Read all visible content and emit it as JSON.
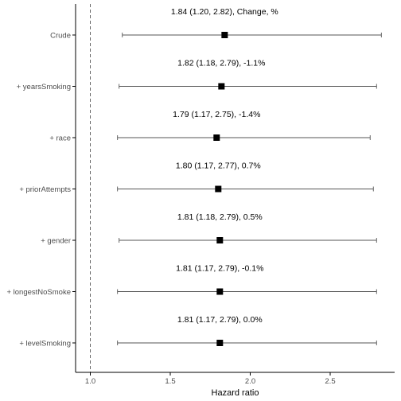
{
  "chart_data": {
    "type": "forest",
    "xlabel": "Hazard ratio",
    "xlim": [
      0.93,
      2.87
    ],
    "xticks": [
      1.0,
      1.5,
      2.0,
      2.5
    ],
    "xtick_labels": [
      "1.0",
      "1.5",
      "2.0",
      "2.5"
    ],
    "reference_line": 1.0,
    "rows": [
      {
        "label": "Crude",
        "estimate": 1.84,
        "lower": 1.2,
        "upper": 2.82,
        "annotation": "1.84 (1.20, 2.82),  Change, %"
      },
      {
        "label": "+ yearsSmoking",
        "estimate": 1.82,
        "lower": 1.18,
        "upper": 2.79,
        "annotation": "1.82 (1.18, 2.79),  -1.1%"
      },
      {
        "label": "+ race",
        "estimate": 1.79,
        "lower": 1.17,
        "upper": 2.75,
        "annotation": "1.79 (1.17, 2.75),  -1.4%"
      },
      {
        "label": "+ priorAttempts",
        "estimate": 1.8,
        "lower": 1.17,
        "upper": 2.77,
        "annotation": "1.80 (1.17, 2.77),  0.7%"
      },
      {
        "label": "+ gender",
        "estimate": 1.81,
        "lower": 1.18,
        "upper": 2.79,
        "annotation": "1.81 (1.18, 2.79),  0.5%"
      },
      {
        "label": "+ longestNoSmoke",
        "estimate": 1.81,
        "lower": 1.17,
        "upper": 2.79,
        "annotation": "1.81 (1.17, 2.79),  -0.1%"
      },
      {
        "label": "+ levelSmoking",
        "estimate": 1.81,
        "lower": 1.17,
        "upper": 2.79,
        "annotation": "1.81 (1.17, 2.79),  0.0%"
      }
    ],
    "colors": {
      "point": "#000000",
      "ci_line": "#555555",
      "axis": "#000000",
      "reference": "#666666",
      "tick_text": "#4d4d4d"
    }
  }
}
